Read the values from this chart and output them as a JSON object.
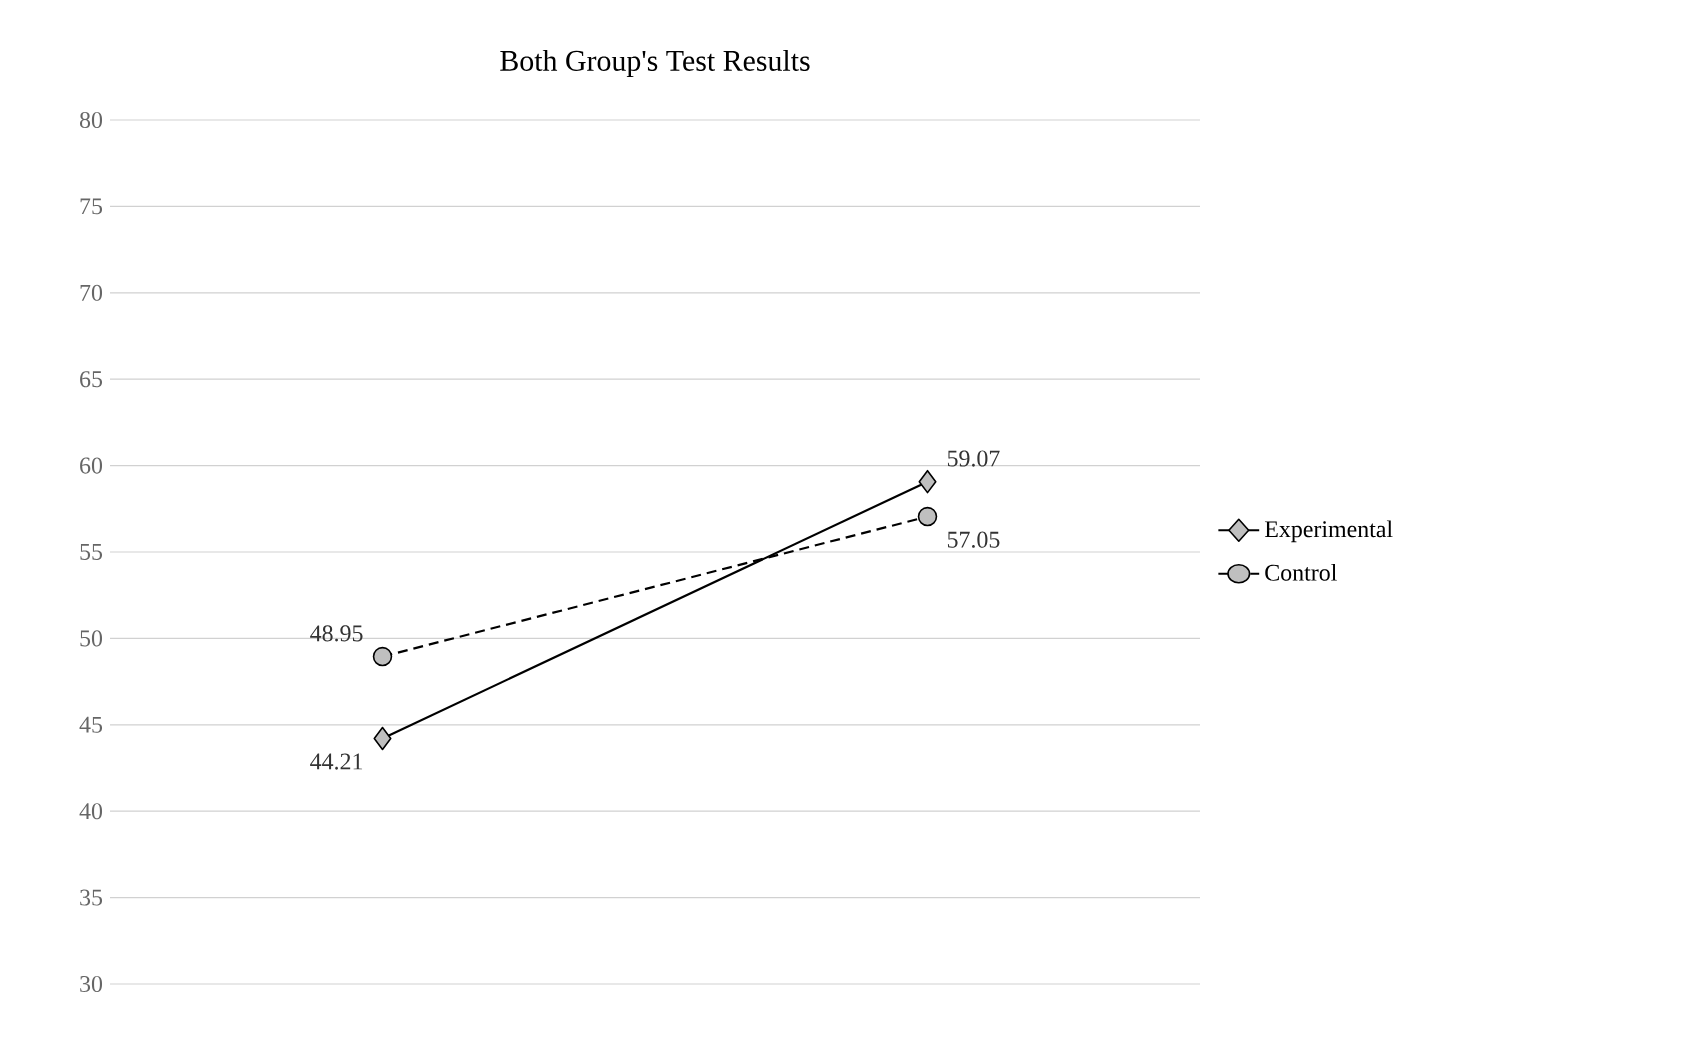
{
  "chart_data": {
    "type": "line",
    "title": "Both Group's Test Results",
    "categories": [
      null,
      null
    ],
    "series": [
      {
        "name": "Experimental",
        "color": "#000000",
        "marker": "diamond",
        "line_style": "solid",
        "values": [
          44.21,
          59.07
        ]
      },
      {
        "name": "Control",
        "color": "#000000",
        "marker": "circle",
        "line_style": "dashed",
        "values": [
          48.95,
          57.05
        ]
      }
    ],
    "ylim": [
      30,
      80
    ],
    "yticks": [
      30,
      35,
      40,
      45,
      50,
      55,
      60,
      65,
      70,
      75,
      80
    ],
    "grid": "y",
    "legend": "right",
    "data_labels": true
  }
}
